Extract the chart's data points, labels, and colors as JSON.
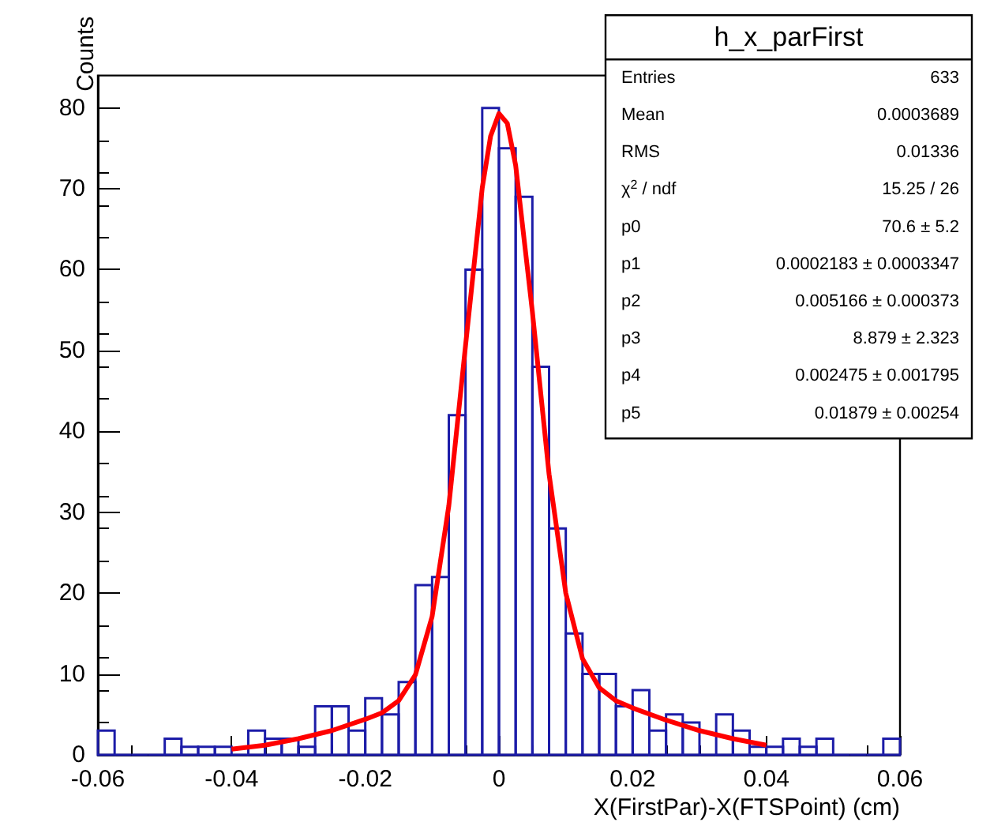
{
  "chart_data": {
    "type": "histogram",
    "xlabel": "X(FirstPar)-X(FTSPoint) (cm)",
    "ylabel": "Counts",
    "xlim": [
      -0.06,
      0.06
    ],
    "xticks": [
      -0.06,
      -0.04,
      -0.02,
      0,
      0.02,
      0.04,
      0.06
    ],
    "ylim": [
      0,
      84
    ],
    "yticks": [
      0,
      10,
      20,
      30,
      40,
      50,
      60,
      70,
      80
    ],
    "grid": false,
    "marker": "none",
    "annotations": [
      "h_x_parFirst",
      "Entries\t633",
      "Mean\t0.0003689",
      "RMS\t0.01336",
      "χ$^{2}$ / ndf\t15.25 / 26",
      "p0\t70.6 ± 5.2",
      "p1\t0.0002183 ± 0.0003347",
      "p2\t0.005166 ± 0.000373",
      "p3\t8.879 ± 2.323",
      "p4\t0.002475 ± 0.001795",
      "p5\t0.01879 ± 0.00254"
    ],
    "color": "#1c1ca8",
    "bins": [
      -0.06,
      -0.0575,
      -0.055,
      -0.0525,
      -0.05,
      -0.0475,
      -0.045,
      -0.0425,
      -0.04,
      -0.0375,
      -0.035,
      -0.0325,
      -0.03,
      -0.0275,
      -0.025,
      -0.0225,
      -0.02,
      -0.0175,
      -0.015,
      -0.0125,
      -0.01,
      -0.0075,
      -0.005,
      -0.0025,
      0,
      0.0025,
      0.005,
      0.0075,
      0.01,
      0.0125,
      0.015,
      0.0175,
      0.02,
      0.0225,
      0.025,
      0.0275,
      0.03,
      0.0325,
      0.035,
      0.0375,
      0.04,
      0.0425,
      0.045,
      0.0475,
      0.05,
      0.0525,
      0.055,
      0.0575,
      0.06
    ],
    "values": [
      3,
      0,
      0,
      0,
      2,
      1,
      1,
      1,
      0,
      3,
      2,
      2,
      1,
      6,
      6,
      3,
      7,
      5,
      9,
      21,
      22,
      42,
      60,
      80,
      75,
      69,
      48,
      28,
      15,
      10,
      10,
      6,
      8,
      3,
      5,
      4,
      0,
      5,
      3,
      1,
      1,
      2,
      1,
      2,
      0,
      0,
      0,
      2
    ],
    "series": [
      {
        "type": "line",
        "color": "#ff0000",
        "x": [
          -0.04,
          -0.035,
          -0.03,
          -0.025,
          -0.02,
          -0.0175,
          -0.015,
          -0.0125,
          -0.01,
          -0.0075,
          -0.005,
          -0.0025,
          -0.00125,
          0,
          0.00125,
          0.0025,
          0.005,
          0.0075,
          0.01,
          0.0125,
          0.015,
          0.0175,
          0.02,
          0.025,
          0.03,
          0.035,
          0.04
        ],
        "values": [
          0.7,
          1.2,
          2.0,
          3.0,
          4.4,
          5.2,
          6.7,
          9.9,
          17.1,
          30.8,
          50.6,
          70.1,
          76.5,
          79.3,
          78.1,
          72.9,
          54.8,
          34.7,
          20.0,
          11.9,
          8.3,
          6.7,
          5.8,
          4.3,
          3.0,
          2.0,
          1.2
        ]
      }
    ]
  }
}
